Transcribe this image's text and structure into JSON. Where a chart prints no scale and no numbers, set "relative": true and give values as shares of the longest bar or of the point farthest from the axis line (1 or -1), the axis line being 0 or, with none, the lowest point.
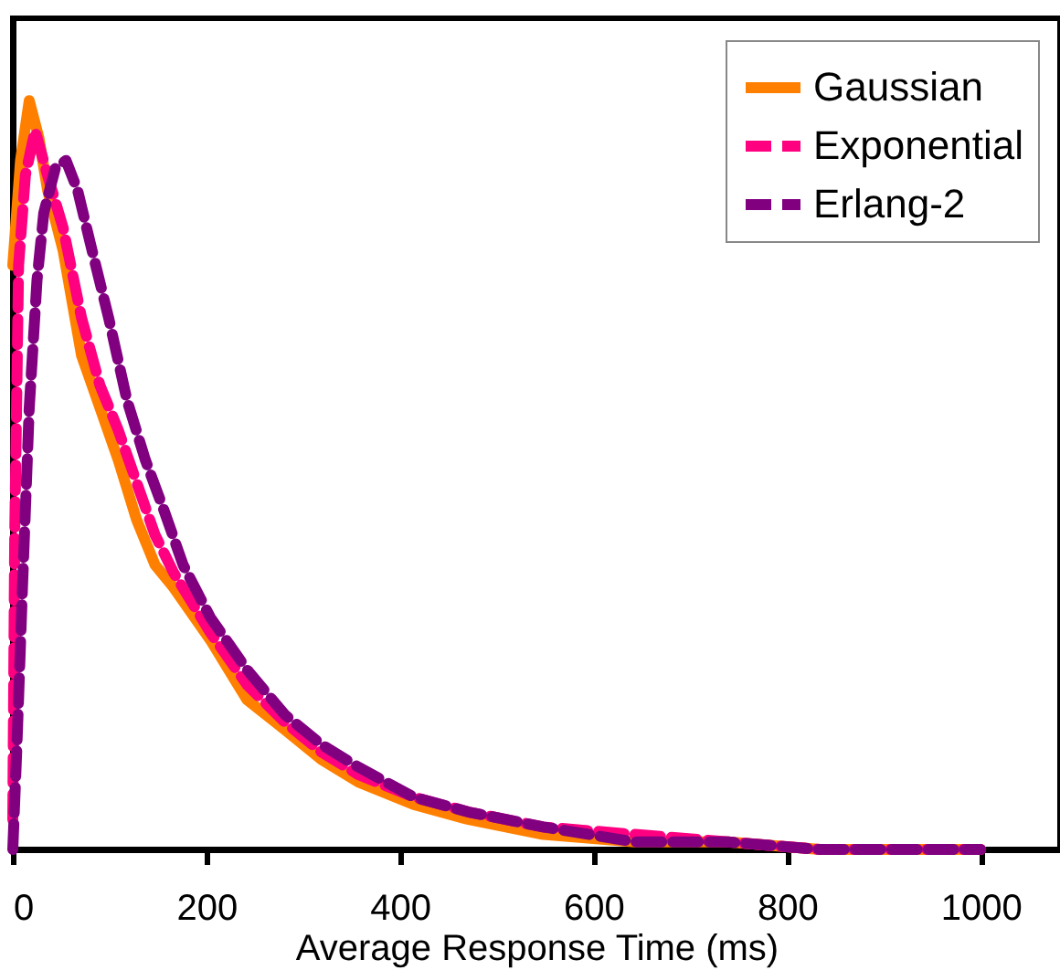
{
  "chart_data": {
    "type": "line",
    "relative": true,
    "xlabel": "Average Response Time (ms)",
    "xlim": [
      0,
      1082
    ],
    "xticks": [
      0,
      200,
      400,
      600,
      800,
      1000
    ],
    "legend": "top right",
    "grid": false,
    "series": [
      {
        "name": "Gaussian",
        "color": "#ff8000",
        "line_style": "solid",
        "x": [
          0,
          8,
          17,
          27,
          36,
          52,
          71,
          90,
          109,
          128,
          147,
          166,
          204,
          242,
          281,
          319,
          357,
          414,
          471,
          548,
          643,
          739,
          834,
          1000
        ],
        "values": [
          0.78,
          0.92,
          1.0,
          0.95,
          0.88,
          0.8,
          0.66,
          0.59,
          0.52,
          0.44,
          0.38,
          0.35,
          0.28,
          0.2,
          0.16,
          0.12,
          0.09,
          0.06,
          0.04,
          0.02,
          0.01,
          0.01,
          0.0,
          0.0
        ]
      },
      {
        "name": "Exponential",
        "color": "#ff0080",
        "line_style": "dashed",
        "x": [
          0,
          2,
          6,
          13,
          23,
          36,
          52,
          71,
          90,
          109,
          128,
          147,
          166,
          204,
          242,
          281,
          319,
          357,
          414,
          471,
          548,
          643,
          739,
          834,
          1000
        ],
        "values": [
          0.04,
          0.42,
          0.78,
          0.9,
          0.96,
          0.9,
          0.83,
          0.71,
          0.62,
          0.56,
          0.49,
          0.42,
          0.37,
          0.29,
          0.22,
          0.17,
          0.13,
          0.1,
          0.07,
          0.05,
          0.03,
          0.02,
          0.01,
          0.0,
          0.0
        ]
      },
      {
        "name": "Erlang-2",
        "color": "#800080",
        "line_style": "dashed",
        "x": [
          0,
          4,
          10,
          17,
          25,
          32,
          44,
          55,
          67,
          80,
          99,
          118,
          137,
          157,
          176,
          204,
          242,
          281,
          319,
          357,
          414,
          471,
          548,
          643,
          739,
          834,
          1000
        ],
        "values": [
          0.0,
          0.13,
          0.35,
          0.59,
          0.76,
          0.85,
          0.91,
          0.92,
          0.88,
          0.81,
          0.71,
          0.6,
          0.52,
          0.45,
          0.38,
          0.31,
          0.24,
          0.18,
          0.14,
          0.11,
          0.07,
          0.05,
          0.03,
          0.01,
          0.01,
          0.0,
          0.0
        ]
      }
    ]
  }
}
